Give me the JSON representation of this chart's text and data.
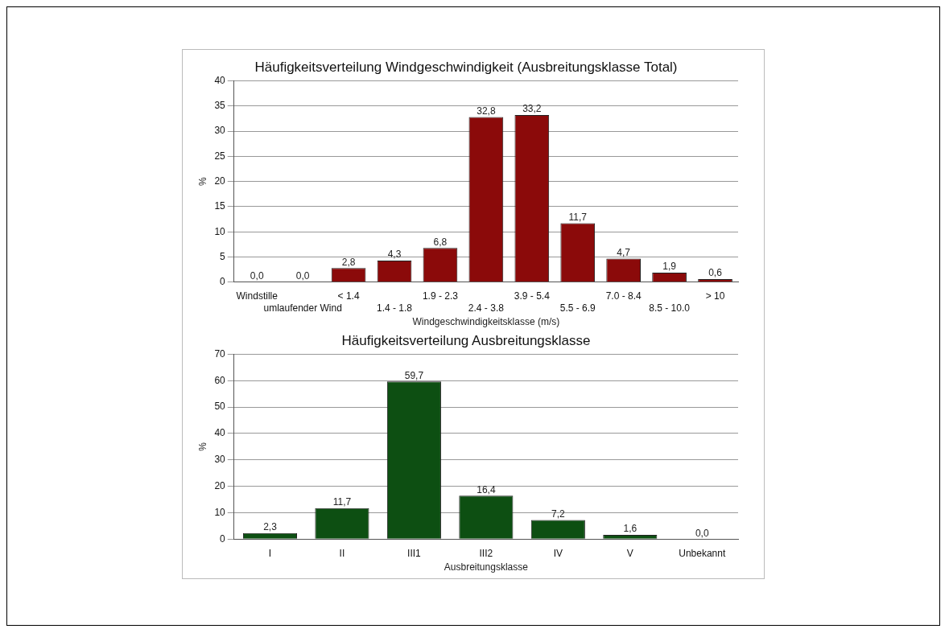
{
  "chart_data": [
    {
      "type": "bar",
      "title": "Häufigkeitsverteilung Windgeschwindigkeit (Ausbreitungsklasse Total)",
      "xlabel": "Windgeschwindigkeitsklasse (m/s)",
      "ylabel": "%",
      "categories": [
        "Windstille",
        "umlaufender Wind",
        "< 1.4",
        "1.4 - 1.8",
        "1.9 - 2.3",
        "2.4 - 3.8",
        "3.9 - 5.4",
        "5.5 - 6.9",
        "7.0 - 8.4",
        "8.5 - 10.0",
        "> 10"
      ],
      "values": [
        0.0,
        0.0,
        2.8,
        4.3,
        6.8,
        32.8,
        33.2,
        11.7,
        4.7,
        1.9,
        0.6
      ],
      "value_labels": [
        "0,0",
        "0,0",
        "2,8",
        "4,3",
        "6,8",
        "32,8",
        "33,2",
        "11,7",
        "4,7",
        "1,9",
        "0,6"
      ],
      "color": "#8b0a0a",
      "ylim": [
        0,
        40
      ],
      "yticks": [
        0,
        5,
        10,
        15,
        20,
        25,
        30,
        35,
        40
      ],
      "grid": "y"
    },
    {
      "type": "bar",
      "title": "Häufigkeitsverteilung Ausbreitungsklasse",
      "xlabel": "Ausbreitungsklasse",
      "ylabel": "%",
      "categories": [
        "I",
        "II",
        "III1",
        "III2",
        "IV",
        "V",
        "Unbekannt"
      ],
      "values": [
        2.3,
        11.7,
        59.7,
        16.4,
        7.2,
        1.6,
        0.0
      ],
      "value_labels": [
        "2,3",
        "11,7",
        "59,7",
        "16,4",
        "7,2",
        "1,6",
        "0,0"
      ],
      "color": "#0d4f12",
      "ylim": [
        0,
        70
      ],
      "yticks": [
        0,
        10,
        20,
        30,
        40,
        50,
        60,
        70
      ],
      "grid": "y"
    }
  ]
}
